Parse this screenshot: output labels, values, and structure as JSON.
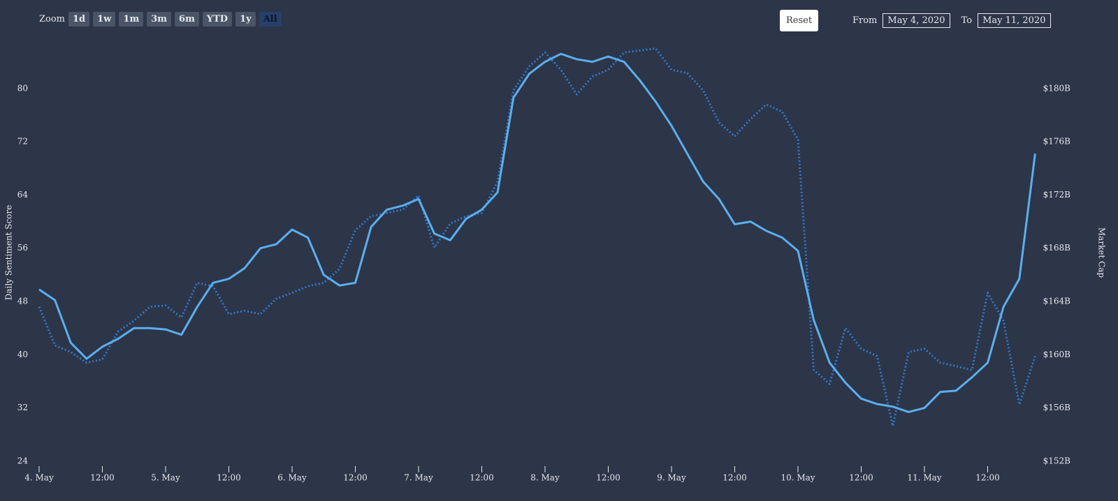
{
  "ui": {
    "zoom_label": "Zoom",
    "zoom_buttons": [
      "1d",
      "1w",
      "1m",
      "3m",
      "6m",
      "YTD",
      "1y",
      "All"
    ],
    "selected": 7,
    "reset": "Reset",
    "from_label": "From",
    "from": "May 4, 2020",
    "to_label": "To",
    "to": "May 11, 2020"
  },
  "chart_data": {
    "type": "line",
    "y_title": "Daily Sentiment Score",
    "y2_title": "Market Cap",
    "x": [
      "2020-05-04T00:00",
      "2020-05-04T03:00",
      "2020-05-04T06:00",
      "2020-05-04T09:00",
      "2020-05-04T12:00",
      "2020-05-04T15:00",
      "2020-05-04T18:00",
      "2020-05-04T21:00",
      "2020-05-05T00:00",
      "2020-05-05T03:00",
      "2020-05-05T06:00",
      "2020-05-05T09:00",
      "2020-05-05T12:00",
      "2020-05-05T15:00",
      "2020-05-05T18:00",
      "2020-05-05T21:00",
      "2020-05-06T00:00",
      "2020-05-06T03:00",
      "2020-05-06T06:00",
      "2020-05-06T09:00",
      "2020-05-06T12:00",
      "2020-05-06T15:00",
      "2020-05-06T18:00",
      "2020-05-06T21:00",
      "2020-05-07T00:00",
      "2020-05-07T03:00",
      "2020-05-07T06:00",
      "2020-05-07T09:00",
      "2020-05-07T12:00",
      "2020-05-07T15:00",
      "2020-05-07T18:00",
      "2020-05-07T21:00",
      "2020-05-08T00:00",
      "2020-05-08T03:00",
      "2020-05-08T06:00",
      "2020-05-08T09:00",
      "2020-05-08T12:00",
      "2020-05-08T15:00",
      "2020-05-08T18:00",
      "2020-05-08T21:00",
      "2020-05-09T00:00",
      "2020-05-09T03:00",
      "2020-05-09T06:00",
      "2020-05-09T09:00",
      "2020-05-09T12:00",
      "2020-05-09T15:00",
      "2020-05-09T18:00",
      "2020-05-09T21:00",
      "2020-05-10T00:00",
      "2020-05-10T03:00",
      "2020-05-10T06:00",
      "2020-05-10T09:00",
      "2020-05-10T12:00",
      "2020-05-10T15:00",
      "2020-05-10T18:00",
      "2020-05-10T21:00",
      "2020-05-11T00:00",
      "2020-05-11T03:00",
      "2020-05-11T06:00",
      "2020-05-11T09:00",
      "2020-05-11T12:00",
      "2020-05-11T15:00",
      "2020-05-11T18:00",
      "2020-05-11T21:00"
    ],
    "series": [
      {
        "color": "#2f7bcc",
        "axis": "y",
        "line_style": "dotted",
        "values": [
          47.2,
          41.4,
          40.4,
          38.8,
          39.3,
          43.5,
          45.1,
          47.2,
          47.4,
          45.6,
          50.8,
          50.3,
          46.1,
          46.6,
          46.1,
          48.4,
          49.3,
          50.3,
          50.8,
          52.9,
          58.7,
          60.8,
          61.3,
          61.8,
          63.9,
          56.1,
          59.7,
          60.8,
          61.3,
          66.0,
          79.7,
          83.3,
          85.4,
          82.8,
          79.1,
          81.8,
          82.8,
          85.4,
          85.7,
          86.0,
          82.8,
          82.3,
          79.7,
          74.9,
          72.8,
          75.4,
          77.6,
          76.5,
          72.3,
          37.7,
          35.6,
          44.0,
          40.9,
          39.8,
          29.3,
          40.4,
          40.9,
          38.8,
          38.3,
          37.7,
          49.3,
          45.1,
          32.5,
          39.8
        ]
      },
      {
        "color": "#5aafef",
        "axis": "y2",
        "line_style": "solid",
        "values": [
          164.9,
          164.1,
          160.9,
          159.7,
          160.6,
          161.2,
          162.0,
          162.0,
          161.9,
          161.5,
          163.6,
          165.4,
          165.7,
          166.5,
          168.0,
          168.3,
          169.4,
          168.8,
          166.0,
          165.2,
          165.4,
          169.6,
          170.9,
          171.2,
          171.7,
          169.1,
          168.6,
          170.2,
          170.9,
          172.2,
          179.3,
          181.1,
          182.0,
          182.6,
          182.2,
          182.0,
          182.4,
          182.0,
          180.6,
          179.0,
          177.2,
          175.1,
          173.0,
          171.7,
          169.8,
          170.0,
          169.3,
          168.8,
          167.8,
          162.6,
          159.4,
          157.9,
          156.7,
          156.3,
          156.1,
          155.7,
          156.0,
          157.2,
          157.3,
          158.3,
          159.4,
          163.6,
          165.7,
          175.1
        ]
      }
    ],
    "xlim": [
      "2020-05-04T00:00",
      "2020-05-11T21:00"
    ],
    "xticks": [
      {
        "value": "2020-05-04T00:00",
        "label": "4. May"
      },
      {
        "value": "2020-05-04T12:00",
        "label": "12:00"
      },
      {
        "value": "2020-05-05T00:00",
        "label": "5. May"
      },
      {
        "value": "2020-05-05T12:00",
        "label": "12:00"
      },
      {
        "value": "2020-05-06T00:00",
        "label": "6. May"
      },
      {
        "value": "2020-05-06T12:00",
        "label": "12:00"
      },
      {
        "value": "2020-05-07T00:00",
        "label": "7. May"
      },
      {
        "value": "2020-05-07T12:00",
        "label": "12:00"
      },
      {
        "value": "2020-05-08T00:00",
        "label": "8. May"
      },
      {
        "value": "2020-05-08T12:00",
        "label": "12:00"
      },
      {
        "value": "2020-05-09T00:00",
        "label": "9. May"
      },
      {
        "value": "2020-05-09T12:00",
        "label": "12:00"
      },
      {
        "value": "2020-05-10T00:00",
        "label": "10. May"
      },
      {
        "value": "2020-05-10T12:00",
        "label": "12:00"
      },
      {
        "value": "2020-05-11T00:00",
        "label": "11. May"
      },
      {
        "value": "2020-05-11T12:00",
        "label": "12:00"
      }
    ],
    "ylim": [
      24,
      88
    ],
    "yticks": [
      24,
      32,
      40,
      48,
      56,
      64,
      72,
      80
    ],
    "y2lim": [
      152,
      184
    ],
    "y2ticks": [
      {
        "value": 152,
        "label": "$152B"
      },
      {
        "value": 156,
        "label": "$156B"
      },
      {
        "value": 160,
        "label": "$160B"
      },
      {
        "value": 164,
        "label": "$164B"
      },
      {
        "value": 168,
        "label": "$168B"
      },
      {
        "value": 172,
        "label": "$172B"
      },
      {
        "value": 176,
        "label": "$176B"
      },
      {
        "value": 180,
        "label": "$180B"
      }
    ],
    "grid": false
  }
}
